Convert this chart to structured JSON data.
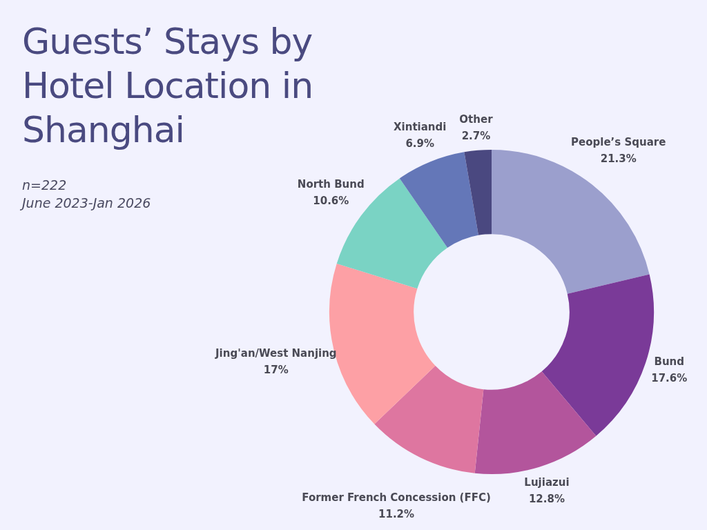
{
  "chart_data": {
    "type": "donut",
    "title": "Guests’ Stays by Hotel Location in Shanghai",
    "subtitle": "n=222",
    "annotations": [
      "June 2023-Jan 2026"
    ],
    "categories": [
      "People’s Square",
      "Bund",
      "Lujiazui",
      "Former French Concession (FFC)",
      "Jing'an/West Nanjing",
      "North Bund",
      "Xintiandi",
      "Other"
    ],
    "values": [
      21.3,
      17.6,
      12.8,
      11.2,
      17,
      10.6,
      6.9,
      2.7
    ],
    "value_labels": [
      "21.3%",
      "17.6%",
      "12.8%",
      "11.2%",
      "17%",
      "10.6%",
      "6.9%",
      "2.7%"
    ],
    "colors": [
      "#9b9fcd",
      "#7a3a98",
      "#b3559c",
      "#de76a0",
      "#fda0a5",
      "#7ad3c4",
      "#6477b8",
      "#4a4880"
    ],
    "legend": false
  }
}
